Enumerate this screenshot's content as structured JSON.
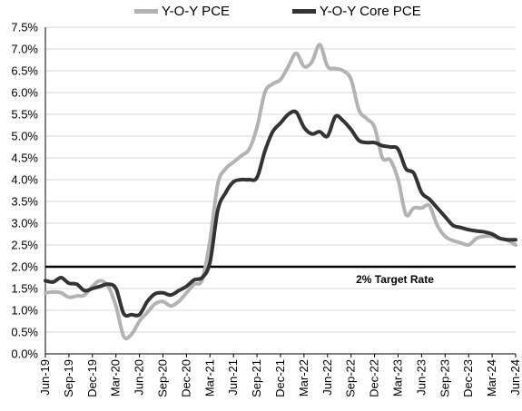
{
  "chart_data": {
    "type": "line",
    "title": "",
    "xlabel": "",
    "ylabel": "",
    "legend_position": "top-center",
    "grid": "horizontal",
    "ylim": [
      0,
      7.5
    ],
    "y_ticks": [
      "0.0%",
      "0.5%",
      "1.0%",
      "1.5%",
      "2.0%",
      "2.5%",
      "3.0%",
      "3.5%",
      "4.0%",
      "4.5%",
      "5.0%",
      "5.5%",
      "6.0%",
      "6.5%",
      "7.0%",
      "7.5%"
    ],
    "x_ticks": [
      "Jun-19",
      "Sep-19",
      "Dec-19",
      "Mar-20",
      "Jun-20",
      "Sep-20",
      "Dec-20",
      "Mar-21",
      "Jun-21",
      "Sep-21",
      "Dec-21",
      "Mar-22",
      "Jun-22",
      "Sep-22",
      "Dec-22",
      "Mar-23",
      "Jun-23",
      "Sep-23",
      "Dec-23",
      "Mar-24",
      "Jun-24"
    ],
    "x": [
      "Jun-19",
      "Jul-19",
      "Aug-19",
      "Sep-19",
      "Oct-19",
      "Nov-19",
      "Dec-19",
      "Jan-20",
      "Feb-20",
      "Mar-20",
      "Apr-20",
      "May-20",
      "Jun-20",
      "Jul-20",
      "Aug-20",
      "Sep-20",
      "Oct-20",
      "Nov-20",
      "Dec-20",
      "Jan-21",
      "Feb-21",
      "Mar-21",
      "Apr-21",
      "May-21",
      "Jun-21",
      "Jul-21",
      "Aug-21",
      "Sep-21",
      "Oct-21",
      "Nov-21",
      "Dec-21",
      "Jan-22",
      "Feb-22",
      "Mar-22",
      "Apr-22",
      "May-22",
      "Jun-22",
      "Jul-22",
      "Aug-22",
      "Sep-22",
      "Oct-22",
      "Nov-22",
      "Dec-22",
      "Jan-23",
      "Feb-23",
      "Mar-23",
      "Apr-23",
      "May-23",
      "Jun-23",
      "Jul-23",
      "Aug-23",
      "Sep-23",
      "Oct-23",
      "Nov-23",
      "Dec-23",
      "Jan-24",
      "Feb-24",
      "Mar-24",
      "Apr-24",
      "May-24",
      "Jun-24"
    ],
    "series": [
      {
        "name": "Y-O-Y PCE",
        "color": "#b3b3b3",
        "values": [
          1.4,
          1.42,
          1.4,
          1.3,
          1.33,
          1.35,
          1.55,
          1.68,
          1.55,
          1.1,
          0.4,
          0.45,
          0.75,
          0.95,
          1.15,
          1.2,
          1.1,
          1.2,
          1.4,
          1.6,
          1.7,
          2.6,
          3.9,
          4.25,
          4.4,
          4.55,
          4.7,
          5.2,
          6.0,
          6.2,
          6.3,
          6.6,
          6.9,
          6.6,
          6.7,
          7.1,
          6.6,
          6.55,
          6.5,
          6.3,
          5.6,
          5.4,
          5.2,
          4.5,
          4.45,
          4.0,
          3.2,
          3.35,
          3.35,
          3.4,
          2.95,
          2.7,
          2.6,
          2.55,
          2.5,
          2.65,
          2.7,
          2.7,
          2.65,
          2.6,
          2.5
        ]
      },
      {
        "name": "Y-O-Y Core PCE",
        "color": "#333333",
        "values": [
          1.68,
          1.65,
          1.75,
          1.62,
          1.6,
          1.45,
          1.5,
          1.55,
          1.6,
          1.5,
          0.92,
          0.9,
          0.9,
          1.2,
          1.38,
          1.4,
          1.35,
          1.45,
          1.55,
          1.7,
          1.75,
          2.1,
          3.3,
          3.7,
          3.95,
          4.0,
          4.0,
          4.05,
          4.65,
          5.1,
          5.3,
          5.5,
          5.55,
          5.2,
          5.05,
          5.1,
          5.0,
          5.45,
          5.35,
          5.15,
          4.9,
          4.85,
          4.85,
          4.78,
          4.75,
          4.7,
          4.25,
          4.15,
          3.7,
          3.55,
          3.35,
          3.15,
          2.95,
          2.9,
          2.85,
          2.82,
          2.8,
          2.75,
          2.65,
          2.62,
          2.62
        ]
      }
    ],
    "reference_line": {
      "value": 2.0,
      "color": "#000000"
    },
    "annotation": "2% Target Rate"
  }
}
